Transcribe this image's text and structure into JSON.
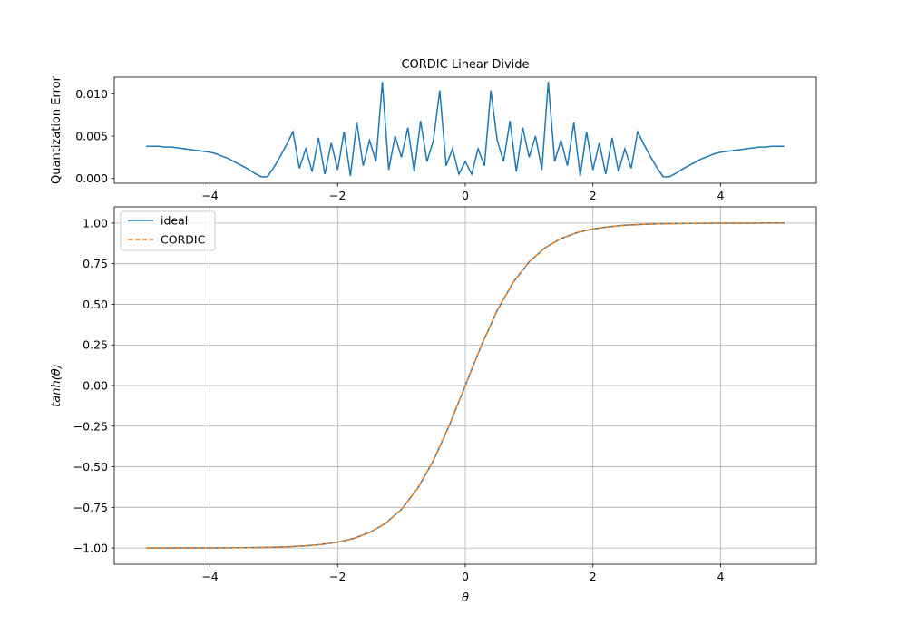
{
  "chart_data": [
    {
      "type": "line",
      "title": "CORDIC Linear Divide",
      "ylabel": "Quantization Error",
      "x": [
        -5.0,
        -4.9,
        -4.8,
        -4.7,
        -4.6,
        -4.5,
        -4.4,
        -4.3,
        -4.2,
        -4.1,
        -4.0,
        -3.9,
        -3.8,
        -3.7,
        -3.6,
        -3.5,
        -3.4,
        -3.3,
        -3.2,
        -3.1,
        -3.0,
        -2.9,
        -2.8,
        -2.7,
        -2.6,
        -2.5,
        -2.4,
        -2.3,
        -2.2,
        -2.1,
        -2.0,
        -1.9,
        -1.8,
        -1.7,
        -1.6,
        -1.5,
        -1.4,
        -1.3,
        -1.2,
        -1.1,
        -1.0,
        -0.9,
        -0.8,
        -0.7,
        -0.6,
        -0.5,
        -0.4,
        -0.3,
        -0.2,
        -0.1,
        0.0,
        0.1,
        0.2,
        0.3,
        0.4,
        0.5,
        0.6,
        0.7,
        0.8,
        0.9,
        1.0,
        1.1,
        1.2,
        1.3,
        1.4,
        1.5,
        1.6,
        1.7,
        1.8,
        1.9,
        2.0,
        2.1,
        2.2,
        2.3,
        2.4,
        2.5,
        2.6,
        2.7,
        2.8,
        2.9,
        3.0,
        3.1,
        3.2,
        3.3,
        3.4,
        3.5,
        3.6,
        3.7,
        3.8,
        3.9,
        4.0,
        4.1,
        4.2,
        4.3,
        4.4,
        4.5,
        4.6,
        4.7,
        4.8,
        4.9,
        5.0
      ],
      "values": [
        0.0038,
        0.0038,
        0.0038,
        0.0037,
        0.0037,
        0.0036,
        0.0035,
        0.0034,
        0.0033,
        0.0032,
        0.0031,
        0.0029,
        0.0026,
        0.0023,
        0.0019,
        0.0015,
        0.0011,
        0.0006,
        0.0002,
        0.0002,
        0.0013,
        0.0026,
        0.004,
        0.0055,
        0.0012,
        0.0035,
        0.0008,
        0.0048,
        0.0005,
        0.0042,
        0.001,
        0.0055,
        0.0003,
        0.0066,
        0.0015,
        0.0045,
        0.002,
        0.0114,
        0.001,
        0.005,
        0.0025,
        0.006,
        0.0008,
        0.0068,
        0.002,
        0.0045,
        0.0104,
        0.0015,
        0.0035,
        0.0005,
        0.002,
        0.0005,
        0.0035,
        0.0015,
        0.0104,
        0.0045,
        0.002,
        0.0068,
        0.0008,
        0.006,
        0.0025,
        0.005,
        0.001,
        0.0114,
        0.002,
        0.0045,
        0.0015,
        0.0066,
        0.0003,
        0.0055,
        0.001,
        0.0042,
        0.0005,
        0.0048,
        0.0008,
        0.0035,
        0.0012,
        0.0055,
        0.004,
        0.0026,
        0.0013,
        0.0002,
        0.0002,
        0.0006,
        0.0011,
        0.0015,
        0.0019,
        0.0023,
        0.0026,
        0.0029,
        0.0031,
        0.0032,
        0.0033,
        0.0034,
        0.0035,
        0.0036,
        0.0037,
        0.0037,
        0.0038,
        0.0038,
        0.0038
      ],
      "color": "#1f77b4",
      "xlim": [
        -5.5,
        5.5
      ],
      "xticks": [
        {
          "value": -4,
          "label": "−4"
        },
        {
          "value": -2,
          "label": "−2"
        },
        0,
        2,
        4
      ],
      "ylim": [
        -0.00057,
        0.01197
      ],
      "yticks": [
        {
          "value": 0,
          "label": "0.000"
        },
        {
          "value": 0.005,
          "label": "0.005"
        },
        {
          "value": 0.01,
          "label": "0.010"
        }
      ],
      "grid": false
    },
    {
      "type": "line",
      "xlabel": "θ",
      "ylabel": "tanh(θ)",
      "x": [
        -5,
        -4.75,
        -4.5,
        -4.25,
        -4,
        -3.75,
        -3.5,
        -3.25,
        -3,
        -2.75,
        -2.5,
        -2.25,
        -2,
        -1.75,
        -1.5,
        -1.25,
        -1,
        -0.75,
        -0.5,
        -0.25,
        0,
        0.25,
        0.5,
        0.75,
        1,
        1.25,
        1.5,
        1.75,
        2,
        2.25,
        2.5,
        2.75,
        3,
        3.25,
        3.5,
        3.75,
        4,
        4.25,
        4.5,
        4.75,
        5
      ],
      "series": [
        {
          "name": "ideal",
          "color": "#1f77b4",
          "linestyle": "solid",
          "values": [
            -0.9999,
            -0.9999,
            -0.9998,
            -0.9996,
            -0.9993,
            -0.9989,
            -0.9982,
            -0.997,
            -0.9951,
            -0.9918,
            -0.9866,
            -0.978,
            -0.964,
            -0.9414,
            -0.9051,
            -0.8483,
            -0.7616,
            -0.6351,
            -0.4621,
            -0.2449,
            0,
            0.2449,
            0.4621,
            0.6351,
            0.7616,
            0.8483,
            0.9051,
            0.9414,
            0.964,
            0.978,
            0.9866,
            0.9918,
            0.9951,
            0.997,
            0.9982,
            0.9989,
            0.9993,
            0.9996,
            0.9998,
            0.9999,
            0.9999
          ]
        },
        {
          "name": "CORDIC",
          "color": "#ff7f0e",
          "linestyle": "dashed",
          "values": [
            -0.9999,
            -0.9999,
            -0.9998,
            -0.9996,
            -0.9993,
            -0.9989,
            -0.9982,
            -0.997,
            -0.9951,
            -0.9918,
            -0.9866,
            -0.978,
            -0.964,
            -0.9414,
            -0.9051,
            -0.8483,
            -0.7616,
            -0.6351,
            -0.4621,
            -0.2449,
            0,
            0.2449,
            0.4621,
            0.6351,
            0.7616,
            0.8483,
            0.9051,
            0.9414,
            0.964,
            0.978,
            0.9866,
            0.9918,
            0.9951,
            0.997,
            0.9982,
            0.9989,
            0.9993,
            0.9996,
            0.9998,
            0.9999,
            0.9999
          ]
        }
      ],
      "xlim": [
        -5.5,
        5.5
      ],
      "xticks": [
        {
          "value": -4,
          "label": "−4"
        },
        {
          "value": -2,
          "label": "−2"
        },
        0,
        2,
        4
      ],
      "ylim": [
        -1.1,
        1.1
      ],
      "yticks": [
        {
          "value": -1,
          "label": "−1.00"
        },
        {
          "value": -0.75,
          "label": "−0.75"
        },
        {
          "value": -0.5,
          "label": "−0.50"
        },
        {
          "value": -0.25,
          "label": "−0.25"
        },
        {
          "value": 0,
          "label": "0.00"
        },
        {
          "value": 0.25,
          "label": "0.25"
        },
        {
          "value": 0.5,
          "label": "0.50"
        },
        {
          "value": 0.75,
          "label": "0.75"
        },
        {
          "value": 1,
          "label": "1.00"
        }
      ],
      "grid": true,
      "legend": "upper left"
    }
  ]
}
